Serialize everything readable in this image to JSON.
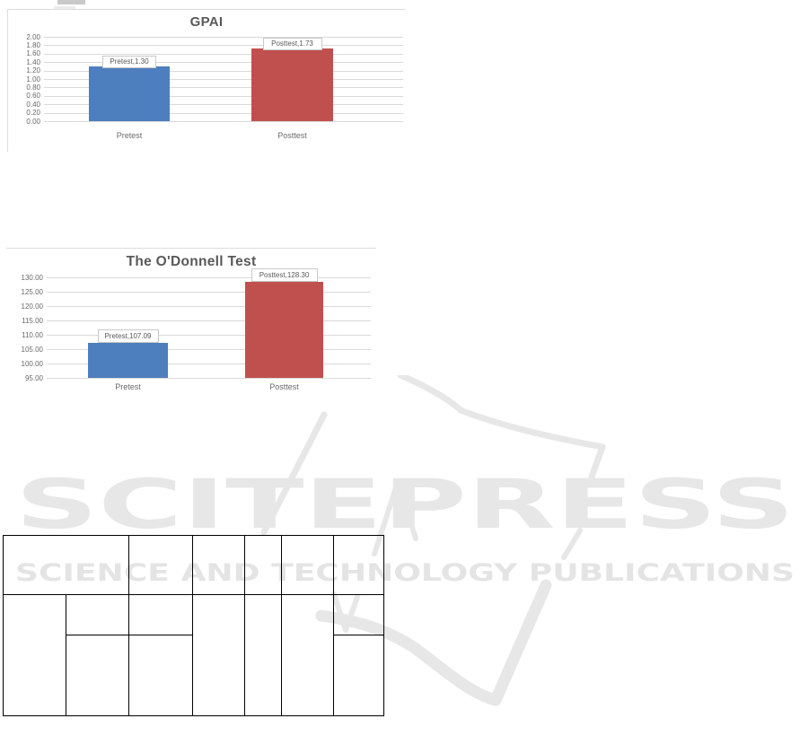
{
  "watermark": {
    "brand": "SCITEPRESS",
    "tagline": "SCIENCE AND TECHNOLOGY PUBLICATIONS",
    "color": "#e7e7e7"
  },
  "colors": {
    "bar_pretest": "#4d7ebd",
    "bar_posttest": "#c0504d",
    "gridline": "#d9d9d9",
    "chart_title_text": "#595959"
  },
  "chart_data": [
    {
      "type": "bar",
      "title": "GPAI",
      "categories": [
        "Pretest",
        "Posttest"
      ],
      "values": [
        1.3,
        1.73
      ],
      "data_labels": [
        "Pretest,1.30",
        "Posttest,1.73"
      ],
      "y_ticks": [
        "2.00",
        "1.80",
        "1.60",
        "1.40",
        "1.20",
        "1.00",
        "0.80",
        "0.60",
        "0.40",
        "0.20",
        "0.00"
      ],
      "ylim": [
        0.0,
        2.0
      ],
      "bar_colors": [
        "#4d7ebd",
        "#c0504d"
      ],
      "grid": true,
      "legend": false,
      "xlabel": "",
      "ylabel": ""
    },
    {
      "type": "bar",
      "title": "The O'Donnell Test",
      "categories": [
        "Pretest",
        "Posttest"
      ],
      "values": [
        107.09,
        128.3
      ],
      "data_labels": [
        "Pretest,107.09",
        "Posttest,128.30"
      ],
      "y_ticks": [
        "130.00",
        "125.00",
        "120.00",
        "115.00",
        "110.00",
        "105.00",
        "100.00",
        "95.00"
      ],
      "ylim": [
        95.0,
        130.0
      ],
      "bar_colors": [
        "#4d7ebd",
        "#c0504d"
      ],
      "grid": true,
      "legend": false,
      "xlabel": "",
      "ylabel": ""
    }
  ]
}
